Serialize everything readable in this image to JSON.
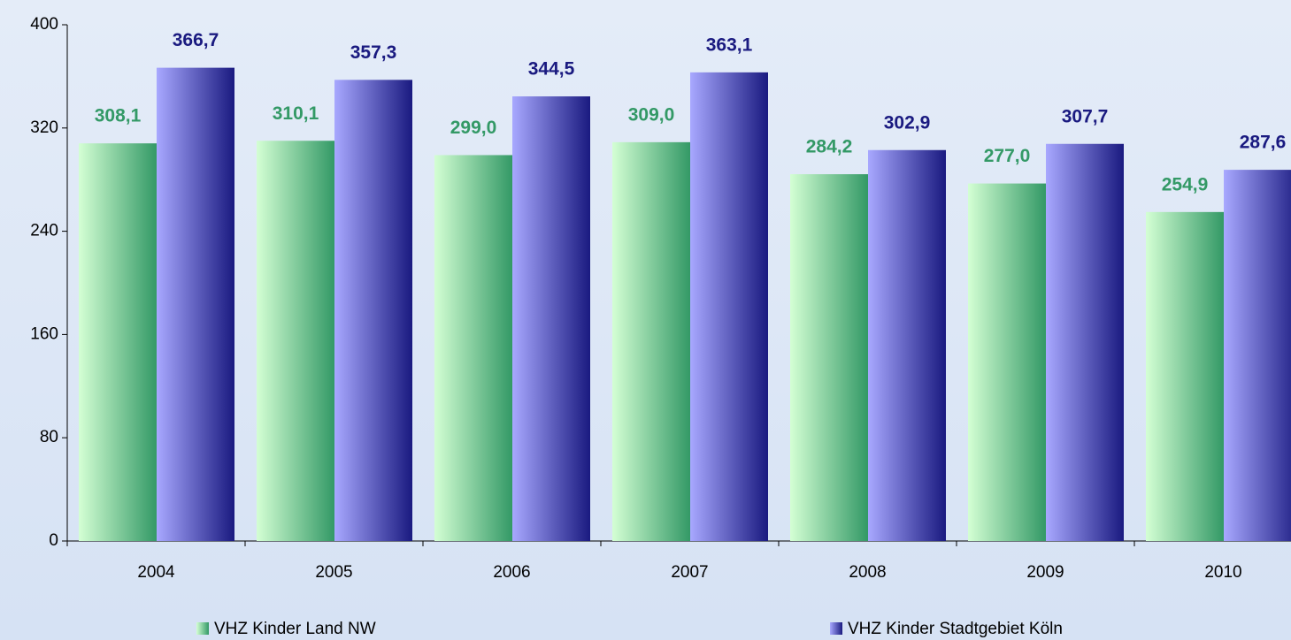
{
  "chart_data": {
    "type": "bar",
    "categories": [
      "2004",
      "2005",
      "2006",
      "2007",
      "2008",
      "2009",
      "2010"
    ],
    "series": [
      {
        "name": "VHZ Kinder Land NW",
        "color": "#339966",
        "values": [
          308.1,
          310.1,
          299.0,
          309.0,
          284.2,
          277.0,
          254.9
        ],
        "value_labels": [
          "308,1",
          "310,1",
          "299,0",
          "309,0",
          "284,2",
          "277,0",
          "254,9"
        ]
      },
      {
        "name": "VHZ Kinder Stadtgebiet Köln",
        "color": "#1a1a80",
        "values": [
          366.7,
          357.3,
          344.5,
          363.1,
          302.9,
          307.7,
          287.6
        ],
        "value_labels": [
          "366,7",
          "357,3",
          "344,5",
          "363,1",
          "302,9",
          "307,7",
          "287,6"
        ]
      }
    ],
    "ylim": [
      0,
      400
    ],
    "yticks": [
      0,
      80,
      160,
      240,
      320,
      400
    ]
  }
}
